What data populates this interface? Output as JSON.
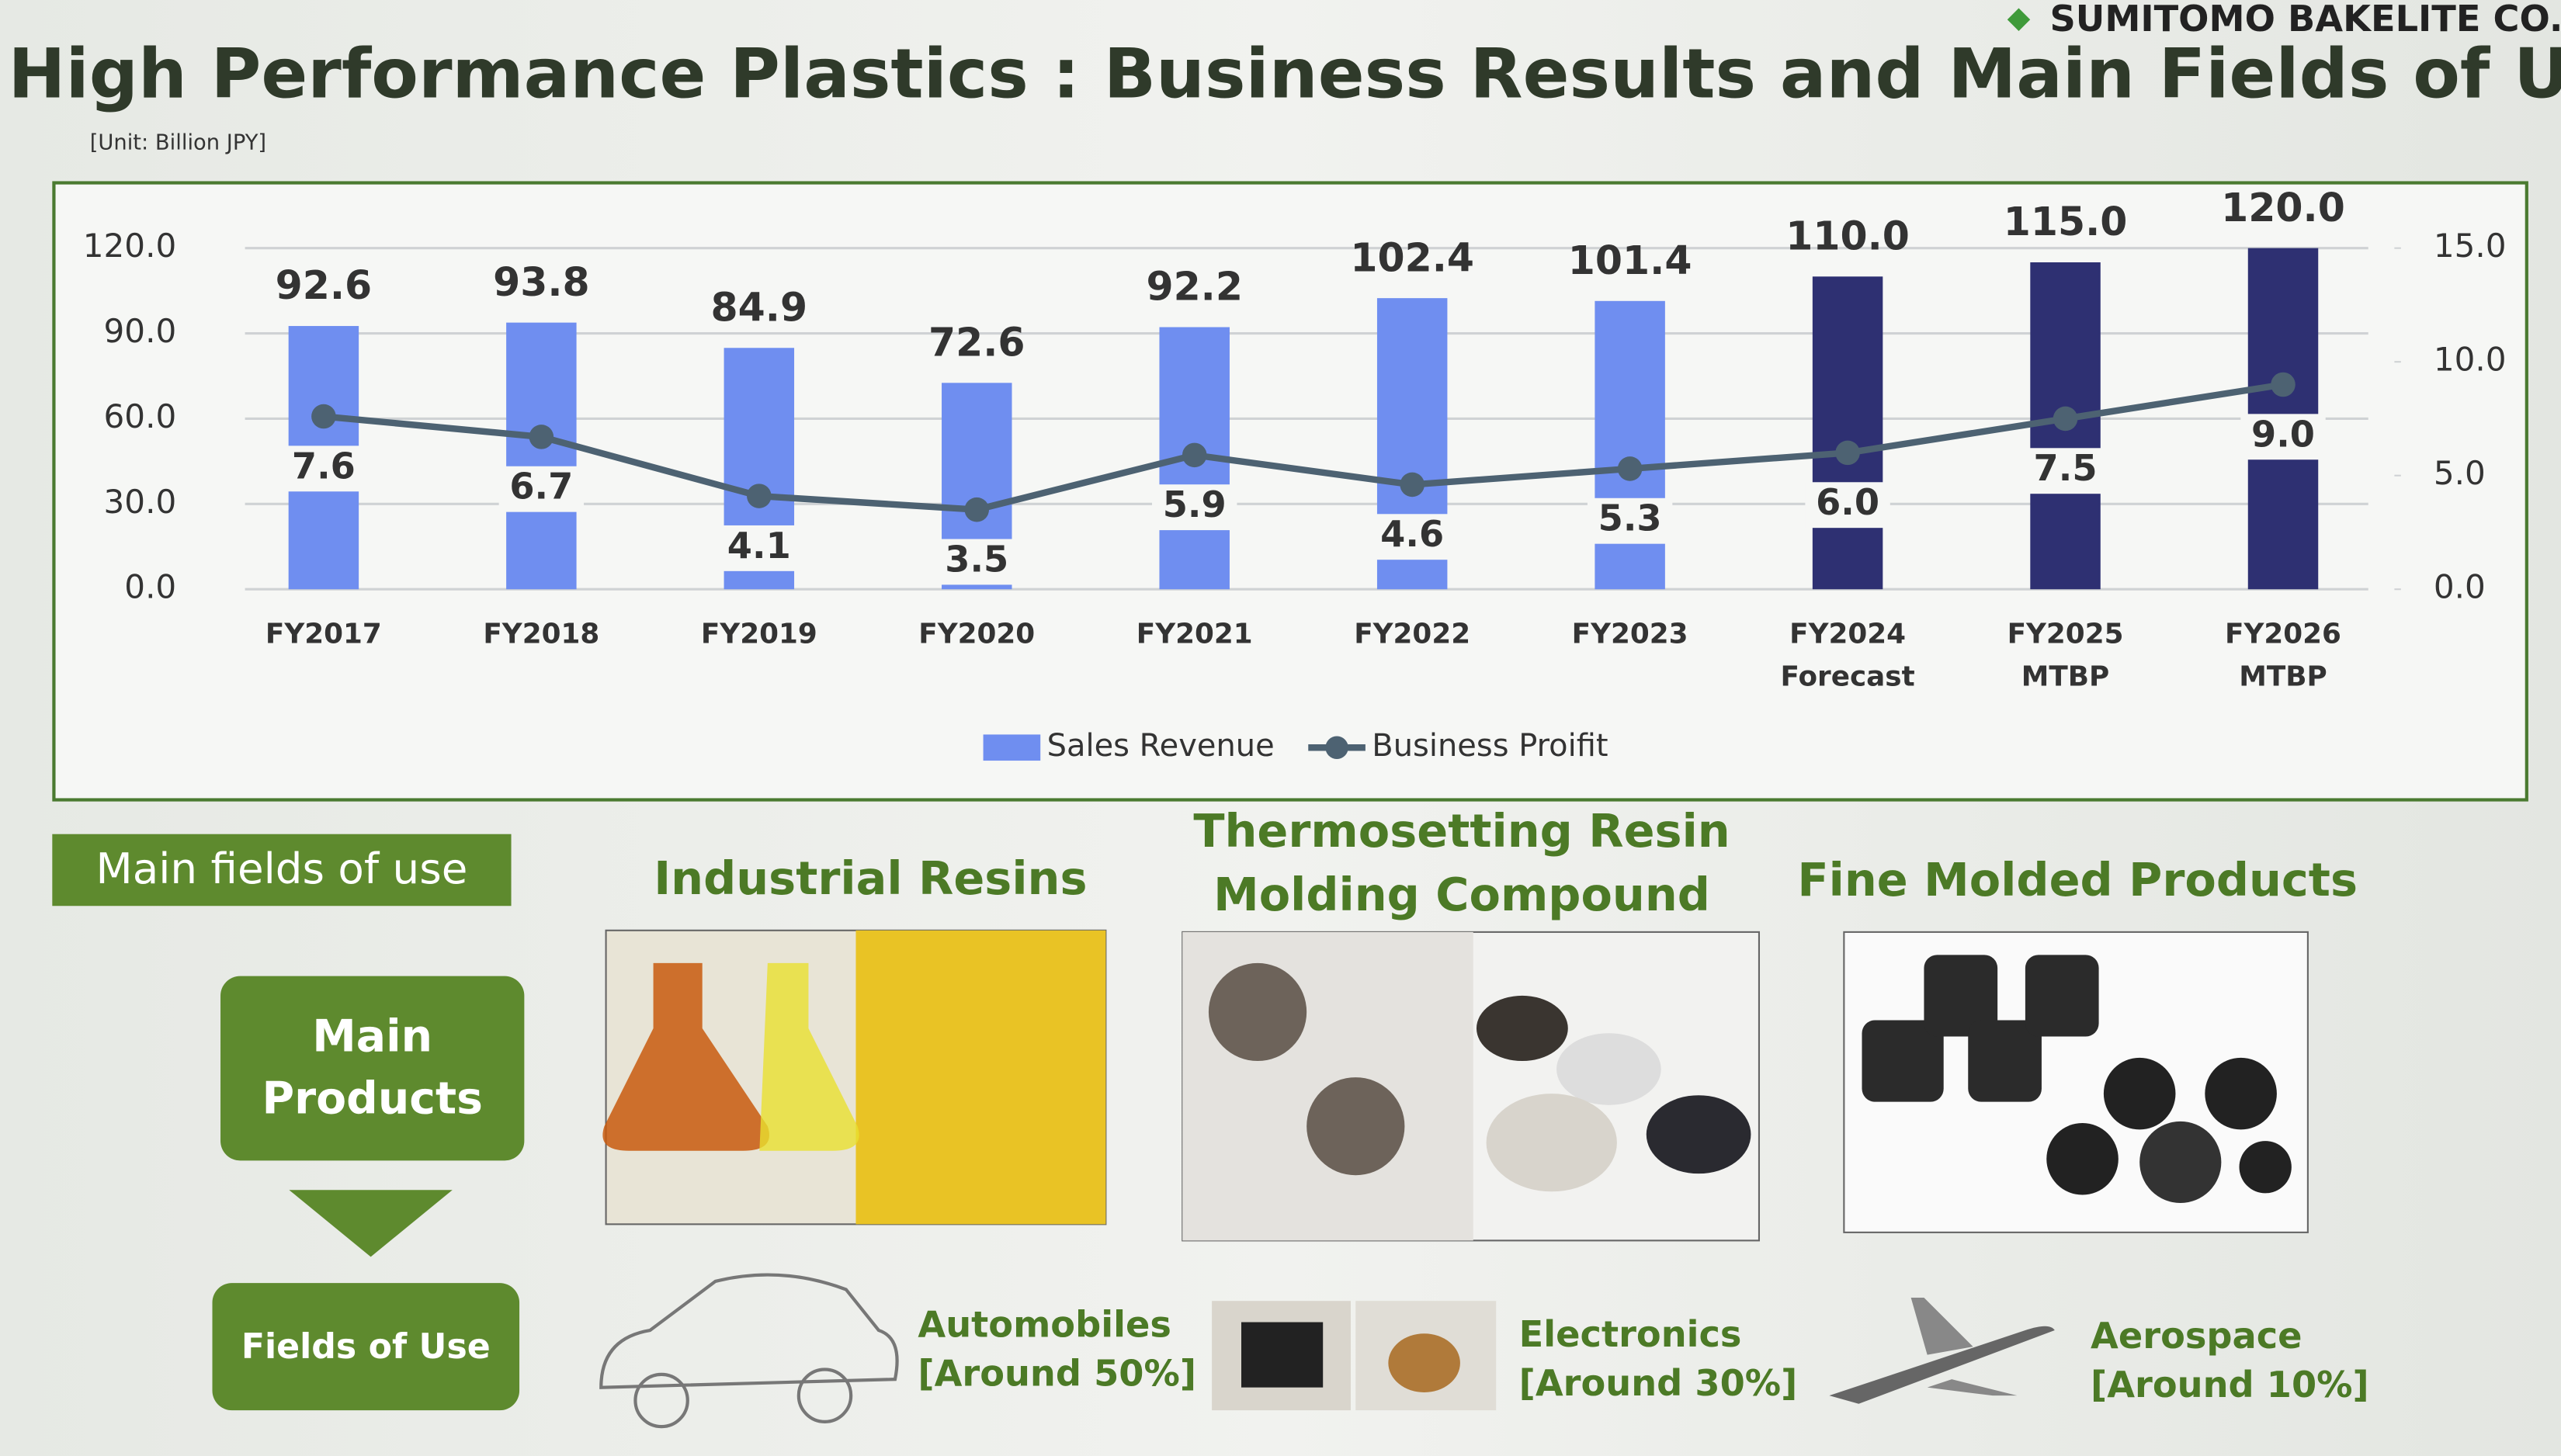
{
  "header": {
    "company": "SUMITOMO BAKELITE CO.,",
    "title": "High Performance Plastics : Business Results and Main Fields of Use",
    "unit": "[Unit: Billion JPY]"
  },
  "chart_data": {
    "type": "bar",
    "categories": [
      "FY2017",
      "FY2018",
      "FY2019",
      "FY2020",
      "FY2021",
      "FY2022",
      "FY2023",
      "FY2024 Forecast",
      "FY2025 MTBP",
      "FY2026 MTBP"
    ],
    "series": [
      {
        "name": "Sales Revenue",
        "type": "bar",
        "color": "#6f8ef0",
        "colors": [
          "#6f8ef0",
          "#6f8ef0",
          "#6f8ef0",
          "#6f8ef0",
          "#6f8ef0",
          "#6f8ef0",
          "#6f8ef0",
          "#2e3072",
          "#2e3072",
          "#2e3072"
        ],
        "values": [
          92.6,
          93.8,
          84.9,
          72.6,
          92.2,
          102.4,
          101.4,
          110.0,
          115.0,
          120.0
        ],
        "value_labels": [
          "92.6",
          "93.8",
          "84.9",
          "72.6",
          "92.2",
          "102.4",
          "101.4",
          "110.0",
          "115.0",
          "120.0"
        ]
      },
      {
        "name": "Business Proifit",
        "type": "line",
        "axis": "y2",
        "color": "#4d6272",
        "values": [
          7.6,
          6.7,
          4.1,
          3.5,
          5.9,
          4.6,
          5.3,
          6.0,
          7.5,
          9.0
        ],
        "value_labels": [
          "7.6",
          "6.7",
          "4.1",
          "3.5",
          "5.9",
          "4.6",
          "5.3",
          "6.0",
          "7.5",
          "9.0"
        ]
      }
    ],
    "ylim": [
      0,
      120
    ],
    "yticks": [
      {
        "value": 0,
        "label": "0.0"
      },
      {
        "value": 30,
        "label": "30.0"
      },
      {
        "value": 60,
        "label": "60.0"
      },
      {
        "value": 90,
        "label": "90.0"
      },
      {
        "value": 120,
        "label": "120.0"
      }
    ],
    "y2lim": [
      0,
      15
    ],
    "y2ticks": [
      {
        "value": 0,
        "label": "0.0"
      },
      {
        "value": 5,
        "label": "5.0"
      },
      {
        "value": 10,
        "label": "10.0"
      },
      {
        "value": 15,
        "label": "15.0"
      }
    ],
    "grid": true,
    "legend": "bottom"
  },
  "fields": {
    "label": "Main fields of use",
    "main_products": "Main Products",
    "fields_of_use": "Fields of Use",
    "products": [
      {
        "title_lines": [
          "Industrial Resins"
        ]
      },
      {
        "title_lines": [
          "Thermosetting Resin",
          "Molding Compound"
        ]
      },
      {
        "title_lines": [
          "Fine Molded Products"
        ]
      }
    ],
    "uses": [
      {
        "name": "Automobiles",
        "share": "[Around 50%]"
      },
      {
        "name": "Electronics",
        "share": "[Around 30%]"
      },
      {
        "name": "Aerospace",
        "share": "[Around 10%]"
      }
    ]
  }
}
